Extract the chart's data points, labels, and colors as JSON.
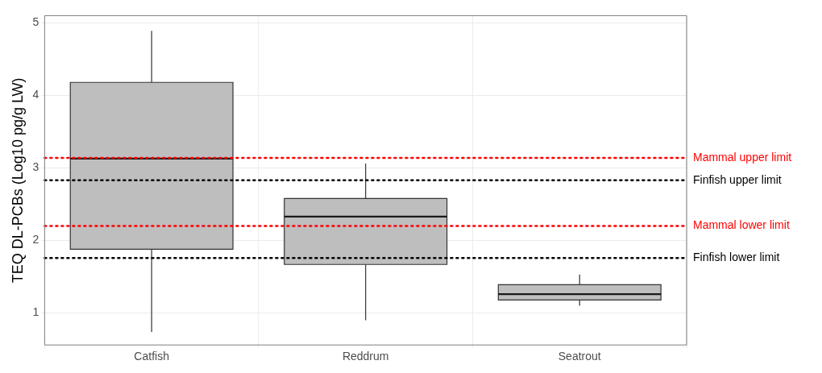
{
  "chart_data": {
    "type": "box",
    "ylabel": "TEQ DL-PCBs (Log10 pg/g LW)",
    "categories": [
      "Catfish",
      "Reddrum",
      "Seatrout"
    ],
    "color": "#bebebe",
    "boxes": [
      {
        "low": 0.74,
        "q1": 1.88,
        "median": 3.13,
        "q3": 4.18,
        "high": 4.89
      },
      {
        "low": 0.9,
        "q1": 1.67,
        "median": 2.33,
        "q3": 2.58,
        "high": 3.06
      },
      {
        "low": 1.1,
        "q1": 1.18,
        "median": 1.26,
        "q3": 1.39,
        "high": 1.53
      }
    ],
    "ylim": [
      0.56,
      5.1
    ],
    "yticks": [
      1,
      2,
      3,
      4,
      5
    ],
    "grid": true,
    "ref_lines": [
      {
        "axis": "y",
        "value": 3.14,
        "label": "Mammal upper limit",
        "color": "#ff0000",
        "line_style": "dotted"
      },
      {
        "axis": "y",
        "value": 2.83,
        "label": "Finfish upper limit",
        "color": "#000000",
        "line_style": "dotted"
      },
      {
        "axis": "y",
        "value": 2.2,
        "label": "Mammal lower limit",
        "color": "#ff0000",
        "line_style": "dotted"
      },
      {
        "axis": "y",
        "value": 1.76,
        "label": "Finfish lower limit",
        "color": "#000000",
        "line_style": "dotted"
      }
    ]
  }
}
